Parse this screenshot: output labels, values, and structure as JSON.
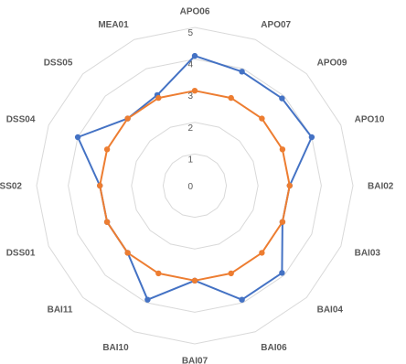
{
  "chart_data": {
    "type": "radar",
    "categories": [
      "APO06",
      "APO07",
      "APO09",
      "APO10",
      "BAI02",
      "BAI03",
      "BAI04",
      "BAI06",
      "BAI07",
      "BAI10",
      "BAI11",
      "DSS01",
      "DSS02",
      "DSS04",
      "DSS05",
      "MEA01"
    ],
    "series": [
      {
        "color": "#4472C4",
        "values": [
          4.1,
          3.9,
          3.9,
          4.0,
          3.0,
          3.0,
          3.9,
          3.9,
          3.0,
          3.9,
          3.0,
          3.0,
          3.0,
          4.0,
          3.0,
          3.1
        ]
      },
      {
        "color": "#ED7D31",
        "values": [
          3.0,
          3.0,
          3.0,
          3.0,
          3.0,
          3.0,
          3.0,
          3.0,
          3.0,
          3.0,
          3.0,
          3.0,
          3.0,
          3.0,
          3.0,
          3.0
        ]
      }
    ],
    "rlim": [
      0,
      5
    ],
    "ticks": [
      "0",
      "1",
      "2",
      "3",
      "4",
      "5"
    ],
    "grid": true,
    "legend": "none"
  }
}
